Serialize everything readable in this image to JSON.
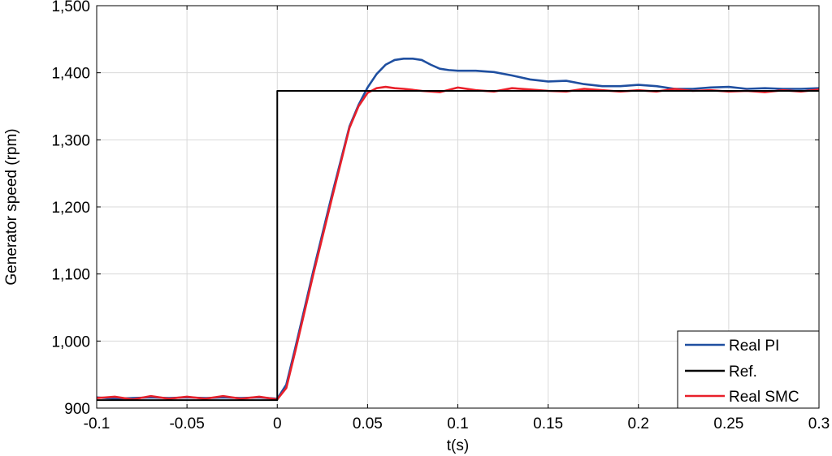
{
  "chart_data": {
    "type": "line",
    "title": "",
    "xlabel": "t(s)",
    "ylabel": "Generator speed (rpm)",
    "xlim": [
      -0.1,
      0.3
    ],
    "ylim": [
      900,
      1500
    ],
    "x_ticks": [
      -0.1,
      -0.05,
      0,
      0.05,
      0.1,
      0.15,
      0.2,
      0.25,
      0.3
    ],
    "x_tick_labels": [
      "-0.1",
      "-0.05",
      "0",
      "0.05",
      "0.1",
      "0.15",
      "0.2",
      "0.25",
      "0.3"
    ],
    "y_ticks": [
      900,
      1000,
      1100,
      1200,
      1300,
      1400,
      1500
    ],
    "y_tick_labels": [
      "900",
      "1,000",
      "1,100",
      "1,200",
      "1,300",
      "1,400",
      "1,500"
    ],
    "grid": true,
    "legend_position": "bottom-right",
    "series": [
      {
        "name": "Real PI",
        "color": "#1f4fa0",
        "x": [
          -0.1,
          -0.09,
          -0.08,
          -0.07,
          -0.06,
          -0.05,
          -0.04,
          -0.03,
          -0.02,
          -0.01,
          0,
          0.005,
          0.01,
          0.02,
          0.03,
          0.04,
          0.045,
          0.05,
          0.055,
          0.06,
          0.065,
          0.07,
          0.075,
          0.08,
          0.085,
          0.09,
          0.095,
          0.1,
          0.11,
          0.12,
          0.13,
          0.14,
          0.15,
          0.16,
          0.17,
          0.18,
          0.19,
          0.2,
          0.21,
          0.22,
          0.23,
          0.24,
          0.25,
          0.26,
          0.27,
          0.28,
          0.29,
          0.3
        ],
        "y": [
          916,
          914,
          915,
          916,
          915,
          916,
          915,
          916,
          915,
          916,
          914,
          935,
          990,
          1105,
          1215,
          1320,
          1352,
          1378,
          1398,
          1412,
          1419,
          1421,
          1421,
          1419,
          1412,
          1406,
          1404,
          1403,
          1403,
          1401,
          1396,
          1390,
          1387,
          1388,
          1383,
          1380,
          1380,
          1382,
          1380,
          1376,
          1376,
          1378,
          1379,
          1376,
          1377,
          1376,
          1376,
          1377
        ]
      },
      {
        "name": "Ref.",
        "color": "#000000",
        "x": [
          -0.1,
          0,
          0,
          0.3
        ],
        "y": [
          912,
          912,
          1373,
          1373
        ]
      },
      {
        "name": "Real SMC",
        "color": "#e8202a",
        "x": [
          -0.1,
          -0.09,
          -0.08,
          -0.07,
          -0.06,
          -0.05,
          -0.04,
          -0.03,
          -0.02,
          -0.01,
          0,
          0.005,
          0.01,
          0.02,
          0.03,
          0.04,
          0.045,
          0.05,
          0.055,
          0.06,
          0.065,
          0.07,
          0.08,
          0.09,
          0.1,
          0.11,
          0.12,
          0.13,
          0.14,
          0.15,
          0.16,
          0.17,
          0.18,
          0.19,
          0.2,
          0.21,
          0.22,
          0.23,
          0.24,
          0.25,
          0.26,
          0.27,
          0.28,
          0.29,
          0.3
        ],
        "y": [
          915,
          917,
          913,
          918,
          914,
          917,
          914,
          918,
          914,
          917,
          913,
          930,
          985,
          1100,
          1210,
          1318,
          1350,
          1370,
          1377,
          1379,
          1377,
          1376,
          1373,
          1371,
          1378,
          1374,
          1372,
          1377,
          1375,
          1373,
          1372,
          1376,
          1374,
          1372,
          1374,
          1372,
          1376,
          1373,
          1374,
          1372,
          1373,
          1371,
          1374,
          1372,
          1375
        ]
      }
    ]
  }
}
